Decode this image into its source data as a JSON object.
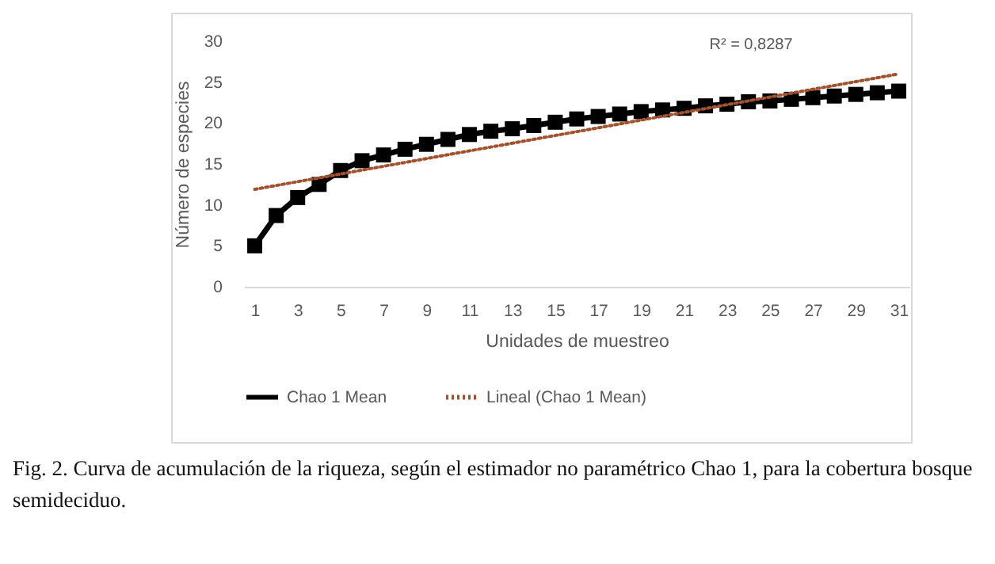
{
  "chart_data": {
    "type": "line",
    "xlabel": "Unidades de muestreo",
    "ylabel": "Número de especies",
    "x": [
      1,
      2,
      3,
      4,
      5,
      6,
      7,
      8,
      9,
      10,
      11,
      12,
      13,
      14,
      15,
      16,
      17,
      18,
      19,
      20,
      21,
      22,
      23,
      24,
      25,
      26,
      27,
      28,
      29,
      30,
      31
    ],
    "series": [
      {
        "name": "Chao 1 Mean",
        "color": "#000000",
        "marker": "square",
        "line_style": "solid",
        "values": [
          5,
          8.7,
          10.9,
          12.5,
          14.2,
          15.4,
          16.1,
          16.8,
          17.4,
          18.0,
          18.6,
          19.0,
          19.3,
          19.7,
          20.1,
          20.5,
          20.8,
          21.1,
          21.4,
          21.6,
          21.8,
          22.1,
          22.3,
          22.6,
          22.7,
          22.9,
          23.1,
          23.3,
          23.5,
          23.7,
          23.9
        ]
      },
      {
        "name": "Lineal (Chao 1 Mean)",
        "color": "#a0522d",
        "marker": "none",
        "line_style": "dotted",
        "x": [
          1,
          31
        ],
        "values": [
          11.9,
          26.0
        ]
      }
    ],
    "xlim": [
      0.5,
      31.5
    ],
    "xticks": [
      1,
      3,
      5,
      7,
      9,
      11,
      13,
      15,
      17,
      19,
      21,
      23,
      25,
      27,
      29,
      31
    ],
    "ylim": [
      0,
      30
    ],
    "yticks": [
      0,
      5,
      10,
      15,
      20,
      25,
      30
    ],
    "grid": false,
    "legend": "bottom",
    "annotations": [
      "R² = 0,8287",
      "Fig. 2. Curva de acumulación de la riqueza, según el estimador no paramétrico Chao 1, para la cobertura bosque semideciduo."
    ]
  }
}
